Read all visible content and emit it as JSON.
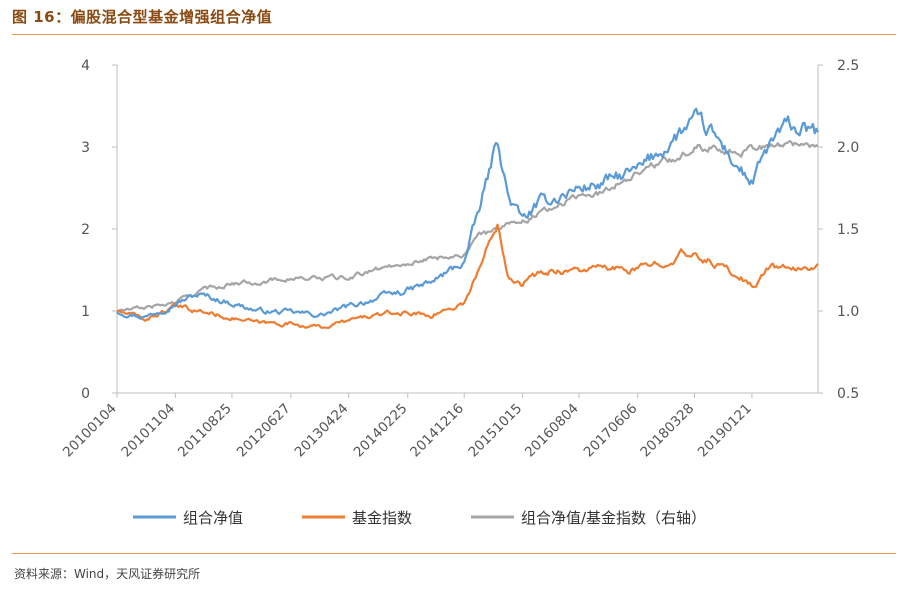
{
  "figure": {
    "title": "图 16：偏股混合型基金增强组合净值",
    "source": "资料来源：Wind，天风证券研究所"
  },
  "colors": {
    "portfolio": "#5b9bd5",
    "index": "#ed7d31",
    "ratio": "#a5a5a5",
    "accent_rule": "#e39a4b",
    "axis": "#bfbfbf"
  },
  "chart_data": {
    "type": "line",
    "x_ticks": [
      "20100104",
      "20101104",
      "20110825",
      "20120627",
      "20130424",
      "20140225",
      "20141216",
      "20151015",
      "20160804",
      "20170606",
      "20180328",
      "20190121"
    ],
    "x_range": [
      "20100104",
      "20191231"
    ],
    "y_left": {
      "ticks": [
        0,
        1,
        2,
        3,
        4
      ],
      "range": [
        0,
        4
      ]
    },
    "y_right": {
      "ticks": [
        "0.5",
        "1.0",
        "1.5",
        "2.0",
        "2.5"
      ],
      "range": [
        0.5,
        2.5
      ]
    },
    "legend_position": "bottom",
    "grid": false,
    "series": [
      {
        "name": "组合净值",
        "axis": "left",
        "x": [
          "20100104",
          "20100601",
          "20101104",
          "20110301",
          "20110825",
          "20120110",
          "20120627",
          "20121201",
          "20130424",
          "20130901",
          "20140225",
          "20140701",
          "20141216",
          "20150301",
          "20150610",
          "20150801",
          "20151015",
          "20160110",
          "20160420",
          "20160804",
          "20161201",
          "20170320",
          "20170606",
          "20171001",
          "20180128",
          "20180328",
          "20180701",
          "20181201",
          "20190121",
          "20190501",
          "20190801",
          "20191231"
        ],
        "y": [
          1.0,
          0.93,
          1.1,
          1.2,
          1.1,
          1.0,
          0.98,
          0.95,
          1.05,
          1.15,
          1.25,
          1.35,
          1.6,
          2.2,
          3.1,
          2.4,
          2.1,
          2.3,
          2.4,
          2.5,
          2.55,
          2.65,
          2.7,
          2.95,
          3.2,
          3.3,
          3.15,
          2.7,
          2.55,
          3.05,
          3.25,
          3.15
        ]
      },
      {
        "name": "基金指数",
        "axis": "left",
        "x": [
          "20100104",
          "20100601",
          "20101104",
          "20110301",
          "20110825",
          "20120110",
          "20120627",
          "20121201",
          "20130424",
          "20130901",
          "20140225",
          "20140701",
          "20141216",
          "20150301",
          "20150610",
          "20150801",
          "20151015",
          "20160110",
          "20160420",
          "20160804",
          "20161201",
          "20170320",
          "20170606",
          "20171001",
          "20180128",
          "20180328",
          "20180701",
          "20181201",
          "20190121",
          "20190501",
          "20190801",
          "20191231"
        ],
        "y": [
          1.0,
          0.9,
          1.05,
          1.0,
          0.92,
          0.85,
          0.85,
          0.8,
          0.88,
          0.95,
          0.98,
          0.95,
          1.1,
          1.5,
          2.1,
          1.45,
          1.35,
          1.45,
          1.5,
          1.5,
          1.52,
          1.5,
          1.5,
          1.6,
          1.7,
          1.65,
          1.6,
          1.4,
          1.3,
          1.55,
          1.5,
          1.55
        ]
      },
      {
        "name": "组合净值/基金指数（右轴）",
        "axis": "right",
        "x": [
          "20100104",
          "20100601",
          "20101104",
          "20110301",
          "20110825",
          "20120110",
          "20120627",
          "20121201",
          "20130424",
          "20130901",
          "20140225",
          "20140701",
          "20141216",
          "20150301",
          "20150610",
          "20150801",
          "20151015",
          "20160110",
          "20160420",
          "20160804",
          "20161201",
          "20170320",
          "20170606",
          "20171001",
          "20180128",
          "20180328",
          "20180701",
          "20181201",
          "20190121",
          "20190501",
          "20190801",
          "20191231"
        ],
        "y": [
          1.0,
          1.02,
          1.05,
          1.12,
          1.17,
          1.18,
          1.2,
          1.2,
          1.2,
          1.25,
          1.3,
          1.32,
          1.35,
          1.45,
          1.5,
          1.55,
          1.55,
          1.6,
          1.65,
          1.7,
          1.72,
          1.8,
          1.85,
          1.9,
          1.95,
          2.0,
          2.0,
          1.98,
          2.0,
          2.0,
          2.02,
          2.02
        ]
      }
    ]
  }
}
